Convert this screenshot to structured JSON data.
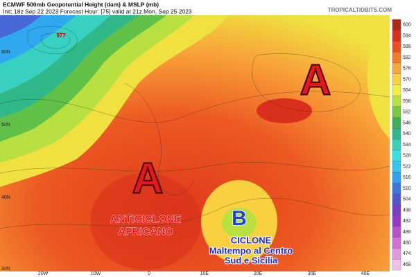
{
  "header": {
    "title": "ECMWF 500mb Geopotential Height (dam) & MSLP (mb)",
    "subtitle": "Init: 18z Sep 22 2023   Forecast Hour: [75]   valid at 21z Mon, Sep 25 2023",
    "source": "TROPICALTIDBITS.COM"
  },
  "latitude_labels": [
    "60N",
    "50N",
    "40N",
    "30N"
  ],
  "longitude_labels": [
    "20W",
    "10W",
    "0",
    "10E",
    "20E",
    "30E",
    "40E"
  ],
  "low_pressure_label": "977",
  "annotations": {
    "high_north": "A",
    "high_west": "A",
    "anticyclone": [
      "ANTICICLONE",
      "AFRICANO"
    ],
    "low": "B",
    "cyclone": [
      "CICLONE",
      "Maltempo al Centro",
      "Sud e Sicilia"
    ]
  },
  "colorbar": [
    {
      "value": 600,
      "color": "#b02818"
    },
    {
      "value": 594,
      "color": "#d8301c"
    },
    {
      "value": 588,
      "color": "#ea5020"
    },
    {
      "value": 582,
      "color": "#f47c28"
    },
    {
      "value": 576,
      "color": "#f8a838"
    },
    {
      "value": 570,
      "color": "#f8d040"
    },
    {
      "value": 564,
      "color": "#eef040"
    },
    {
      "value": 558,
      "color": "#b8e040"
    },
    {
      "value": 552,
      "color": "#78c840"
    },
    {
      "value": 546,
      "color": "#40b058"
    },
    {
      "value": 540,
      "color": "#30b888"
    },
    {
      "value": 534,
      "color": "#38d0b8"
    },
    {
      "value": 528,
      "color": "#38e0e0"
    },
    {
      "value": 522,
      "color": "#30c8f0"
    },
    {
      "value": 516,
      "color": "#30a0f0"
    },
    {
      "value": 510,
      "color": "#3878e0"
    },
    {
      "value": 504,
      "color": "#5058d0"
    },
    {
      "value": 498,
      "color": "#7840c8"
    },
    {
      "value": 492,
      "color": "#9838c8"
    },
    {
      "value": 486,
      "color": "#b850d0"
    },
    {
      "value": 480,
      "color": "#d070d8"
    },
    {
      "value": 474,
      "color": "#e098e0"
    },
    {
      "value": 468,
      "color": "#f0c0ec"
    }
  ]
}
